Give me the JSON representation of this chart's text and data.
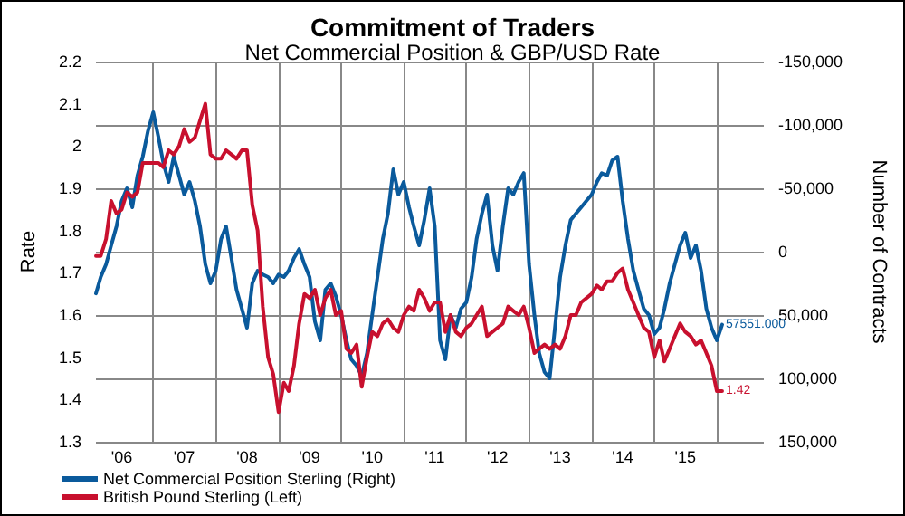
{
  "chart_data": {
    "type": "line",
    "title": "Commitment of Traders",
    "subtitle": "Net Commercial Position & GBP/USD Rate",
    "ylabel": "Rate",
    "y2label": "Number of Contracts",
    "x": [
      "2006-02",
      "2006-03",
      "2006-04",
      "2006-05",
      "2006-06",
      "2006-07",
      "2006-08",
      "2006-09",
      "2006-10",
      "2006-11",
      "2006-12",
      "2007-01",
      "2007-02",
      "2007-03",
      "2007-04",
      "2007-05",
      "2007-06",
      "2007-07",
      "2007-08",
      "2007-09",
      "2007-10",
      "2007-11",
      "2007-12",
      "2008-01",
      "2008-02",
      "2008-03",
      "2008-04",
      "2008-05",
      "2008-06",
      "2008-07",
      "2008-08",
      "2008-09",
      "2008-10",
      "2008-11",
      "2008-12",
      "2009-01",
      "2009-02",
      "2009-03",
      "2009-04",
      "2009-05",
      "2009-06",
      "2009-07",
      "2009-08",
      "2009-09",
      "2009-10",
      "2009-11",
      "2009-12",
      "2010-01",
      "2010-02",
      "2010-03",
      "2010-04",
      "2010-05",
      "2010-06",
      "2010-07",
      "2010-08",
      "2010-09",
      "2010-10",
      "2010-11",
      "2010-12",
      "2011-01",
      "2011-02",
      "2011-03",
      "2011-04",
      "2011-05",
      "2011-06",
      "2011-07",
      "2011-08",
      "2011-09",
      "2011-10",
      "2011-11",
      "2011-12",
      "2012-01",
      "2012-02",
      "2012-03",
      "2012-04",
      "2012-05",
      "2012-06",
      "2012-07",
      "2012-08",
      "2012-09",
      "2012-10",
      "2012-11",
      "2012-12",
      "2013-01",
      "2013-02",
      "2013-03",
      "2013-04",
      "2013-05",
      "2013-06",
      "2013-07",
      "2013-08",
      "2013-09",
      "2013-10",
      "2013-11",
      "2013-12",
      "2014-01",
      "2014-02",
      "2014-03",
      "2014-04",
      "2014-05",
      "2014-06",
      "2014-07",
      "2014-08",
      "2014-09",
      "2014-10",
      "2014-11",
      "2014-12",
      "2015-01",
      "2015-02",
      "2015-03",
      "2015-04",
      "2015-05",
      "2015-06",
      "2015-07",
      "2015-08",
      "2015-09",
      "2015-10",
      "2015-11",
      "2015-12",
      "2016-01",
      "2016-02"
    ],
    "series": [
      {
        "name": "Net Commercial Position Sterling (Right)",
        "color": "#0a5a9c",
        "axis": "y2",
        "values": [
          33000,
          20000,
          10000,
          -5000,
          -20000,
          -40000,
          -50000,
          -35000,
          -60000,
          -75000,
          -95000,
          -110000,
          -90000,
          -70000,
          -55000,
          -75000,
          -60000,
          -45000,
          -55000,
          -40000,
          -20000,
          10000,
          25000,
          15000,
          -10000,
          -20000,
          5000,
          30000,
          45000,
          60000,
          25000,
          15000,
          18000,
          20000,
          25000,
          18000,
          20000,
          15000,
          5000,
          -2000,
          10000,
          20000,
          55000,
          70000,
          30000,
          25000,
          35000,
          50000,
          70000,
          85000,
          90000,
          98000,
          80000,
          50000,
          20000,
          -10000,
          -30000,
          -65000,
          -45000,
          -55000,
          -35000,
          -20000,
          -5000,
          -25000,
          -50000,
          -20000,
          70000,
          85000,
          50000,
          60000,
          45000,
          40000,
          20000,
          -10000,
          -30000,
          -45000,
          -5000,
          15000,
          -20000,
          -50000,
          -45000,
          -55000,
          -62000,
          10000,
          50000,
          80000,
          95000,
          100000,
          60000,
          20000,
          -5000,
          -25000,
          -30000,
          -35000,
          -40000,
          -45000,
          -55000,
          -62000,
          -60000,
          -72000,
          -75000,
          -40000,
          -10000,
          15000,
          30000,
          45000,
          50000,
          65000,
          60000,
          45000,
          25000,
          10000,
          -5000,
          -15000,
          5000,
          -5000,
          15000,
          45000,
          60000,
          70000,
          57551
        ],
        "value_labels": [
          null,
          null,
          null,
          null,
          null,
          null,
          null,
          null,
          null,
          null,
          null,
          null,
          null,
          null,
          null,
          null,
          null,
          null,
          null,
          null,
          null,
          null,
          null,
          null,
          null,
          null,
          null,
          null,
          null,
          null,
          null,
          null,
          null,
          null,
          null,
          null,
          null,
          null,
          null,
          null,
          null,
          null,
          null,
          null,
          null,
          null,
          null,
          null,
          null,
          null,
          null,
          null,
          null,
          null,
          null,
          null,
          null,
          null,
          null,
          null,
          null,
          null,
          null,
          null,
          null,
          null,
          null,
          null,
          null,
          null,
          null,
          null,
          null,
          null,
          null,
          null,
          null,
          null,
          null,
          null,
          null,
          null,
          null,
          null,
          null,
          null,
          null,
          null,
          null,
          null,
          null,
          null,
          null,
          null,
          null,
          null,
          null,
          null,
          null,
          null,
          null,
          null,
          null,
          null,
          null,
          null,
          null,
          null,
          null,
          null,
          null,
          null,
          null,
          null,
          null,
          null,
          null,
          null,
          null,
          null,
          "57551.000"
        ]
      },
      {
        "name": "British Pound Sterling (Left)",
        "color": "#c8102e",
        "values": [
          1.74,
          1.74,
          1.78,
          1.87,
          1.84,
          1.85,
          1.89,
          1.88,
          1.89,
          1.96,
          1.96,
          1.96,
          1.96,
          1.95,
          1.99,
          1.98,
          2.0,
          2.04,
          2.01,
          2.02,
          2.06,
          2.1,
          1.98,
          1.97,
          1.97,
          1.99,
          1.98,
          1.97,
          1.99,
          1.99,
          1.86,
          1.8,
          1.62,
          1.5,
          1.46,
          1.37,
          1.44,
          1.42,
          1.48,
          1.58,
          1.65,
          1.64,
          1.66,
          1.6,
          1.64,
          1.66,
          1.6,
          1.61,
          1.52,
          1.51,
          1.53,
          1.43,
          1.5,
          1.56,
          1.55,
          1.58,
          1.59,
          1.57,
          1.56,
          1.6,
          1.62,
          1.61,
          1.66,
          1.64,
          1.61,
          1.63,
          1.63,
          1.56,
          1.6,
          1.56,
          1.55,
          1.57,
          1.58,
          1.6,
          1.62,
          1.55,
          1.56,
          1.57,
          1.58,
          1.62,
          1.61,
          1.6,
          1.62,
          1.57,
          1.51,
          1.52,
          1.53,
          1.52,
          1.53,
          1.52,
          1.55,
          1.6,
          1.6,
          1.63,
          1.64,
          1.65,
          1.67,
          1.66,
          1.68,
          1.68,
          1.7,
          1.71,
          1.66,
          1.63,
          1.6,
          1.57,
          1.56,
          1.5,
          1.54,
          1.49,
          1.52,
          1.55,
          1.58,
          1.56,
          1.55,
          1.53,
          1.54,
          1.51,
          1.48,
          1.42,
          1.42
        ],
        "value_labels": [
          null,
          null,
          null,
          null,
          null,
          null,
          null,
          null,
          null,
          null,
          null,
          null,
          null,
          null,
          null,
          null,
          null,
          null,
          null,
          null,
          null,
          null,
          null,
          null,
          null,
          null,
          null,
          null,
          null,
          null,
          null,
          null,
          null,
          null,
          null,
          null,
          null,
          null,
          null,
          null,
          null,
          null,
          null,
          null,
          null,
          null,
          null,
          null,
          null,
          null,
          null,
          null,
          null,
          null,
          null,
          null,
          null,
          null,
          null,
          null,
          null,
          null,
          null,
          null,
          null,
          null,
          null,
          null,
          null,
          null,
          null,
          null,
          null,
          null,
          null,
          null,
          null,
          null,
          null,
          null,
          null,
          null,
          null,
          null,
          null,
          null,
          null,
          null,
          null,
          null,
          null,
          null,
          null,
          null,
          null,
          null,
          null,
          null,
          null,
          null,
          null,
          null,
          null,
          null,
          null,
          null,
          null,
          null,
          null,
          null,
          null,
          null,
          null,
          null,
          null,
          null,
          null,
          null,
          null,
          null,
          "1.42"
        ]
      }
    ],
    "xlim": [
      "2006-02",
      "2016-10"
    ],
    "xticks": [
      {
        "value": "2006-07",
        "label": "'06"
      },
      {
        "value": "2007-01",
        "label": null
      },
      {
        "value": "2007-07",
        "label": "'07"
      },
      {
        "value": "2008-01",
        "label": null
      },
      {
        "value": "2008-07",
        "label": "'08"
      },
      {
        "value": "2009-01",
        "label": null
      },
      {
        "value": "2009-07",
        "label": "'09"
      },
      {
        "value": "2010-01",
        "label": null
      },
      {
        "value": "2010-07",
        "label": "'10"
      },
      {
        "value": "2011-01",
        "label": null
      },
      {
        "value": "2011-07",
        "label": "'11"
      },
      {
        "value": "2012-01",
        "label": null
      },
      {
        "value": "2012-07",
        "label": "'12"
      },
      {
        "value": "2013-01",
        "label": null
      },
      {
        "value": "2013-07",
        "label": "'13"
      },
      {
        "value": "2014-01",
        "label": null
      },
      {
        "value": "2014-07",
        "label": "'14"
      },
      {
        "value": "2015-01",
        "label": null
      },
      {
        "value": "2015-07",
        "label": "'15"
      },
      {
        "value": "2016-01",
        "label": null
      }
    ],
    "ylim": [
      1.3,
      2.2
    ],
    "yticks": [
      1.3,
      1.4,
      1.5,
      1.6,
      1.7,
      1.8,
      1.9,
      2,
      2.1,
      2.2
    ],
    "y2lim": [
      150000,
      -150000
    ],
    "y2ticks": [
      {
        "value": -150000,
        "label": "-150,000"
      },
      {
        "value": -100000,
        "label": "-100,000"
      },
      {
        "value": -50000,
        "label": "-50,000"
      },
      0,
      {
        "value": 50000,
        "label": "50,000"
      },
      {
        "value": 100000,
        "label": "100,000"
      },
      {
        "value": 150000,
        "label": "150,000"
      }
    ],
    "grid": true,
    "legend": "bottom left",
    "marker": "none",
    "line_style": "solid"
  }
}
